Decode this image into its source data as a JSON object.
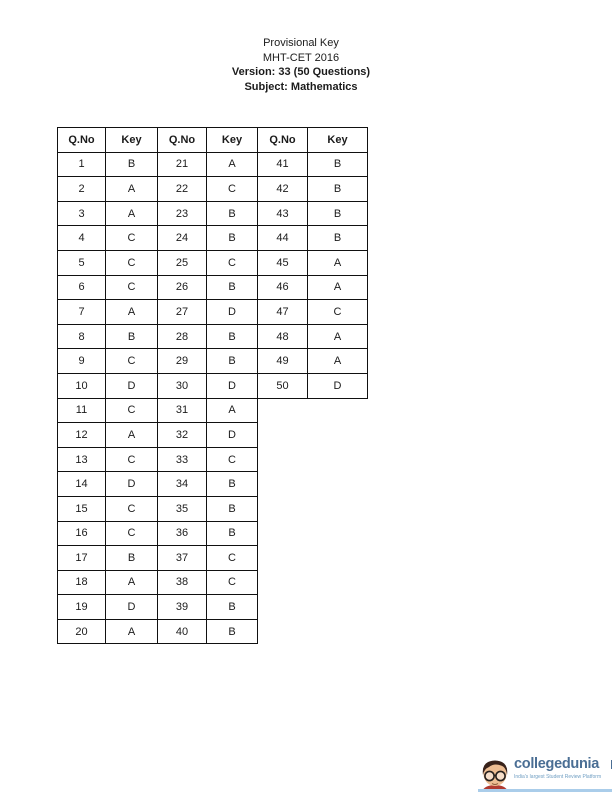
{
  "page": {
    "title_lines": [
      "Provisional Key",
      "MHT-CET 2016",
      "Version: 33 (50 Questions)",
      "Subject: Mathematics"
    ]
  },
  "answer_key": {
    "headers": [
      "Q.No",
      "Key",
      "Q.No",
      "Key",
      "Q.No",
      "Key"
    ],
    "rows": [
      [
        "1",
        "B",
        "21",
        "A",
        "41",
        "B"
      ],
      [
        "2",
        "A",
        "22",
        "C",
        "42",
        "B"
      ],
      [
        "3",
        "A",
        "23",
        "B",
        "43",
        "B"
      ],
      [
        "4",
        "C",
        "24",
        "B",
        "44",
        "B"
      ],
      [
        "5",
        "C",
        "25",
        "C",
        "45",
        "A"
      ],
      [
        "6",
        "C",
        "26",
        "B",
        "46",
        "A"
      ],
      [
        "7",
        "A",
        "27",
        "D",
        "47",
        "C"
      ],
      [
        "8",
        "B",
        "28",
        "B",
        "48",
        "A"
      ],
      [
        "9",
        "C",
        "29",
        "B",
        "49",
        "A"
      ],
      [
        "10",
        "D",
        "30",
        "D",
        "50",
        "D"
      ],
      [
        "11",
        "C",
        "31",
        "A"
      ],
      [
        "12",
        "A",
        "32",
        "D"
      ],
      [
        "13",
        "C",
        "33",
        "C"
      ],
      [
        "14",
        "D",
        "34",
        "B"
      ],
      [
        "15",
        "C",
        "35",
        "B"
      ],
      [
        "16",
        "C",
        "36",
        "B"
      ],
      [
        "17",
        "B",
        "37",
        "C"
      ],
      [
        "18",
        "A",
        "38",
        "C"
      ],
      [
        "19",
        "D",
        "39",
        "B"
      ],
      [
        "20",
        "A",
        "40",
        "B"
      ]
    ]
  },
  "logo": {
    "brand": "collegedunia",
    "tagline": "India's largest Student Review Platform",
    "brand_color": "#4a6e94",
    "tagline_color": "#6f9ec2",
    "mascot_icon": "student-mascot-icon"
  },
  "colors": {
    "table_border": "#111111",
    "text": "#1b1b1b",
    "page_background": "#ffffff",
    "logo_underline": "#aacdea"
  }
}
